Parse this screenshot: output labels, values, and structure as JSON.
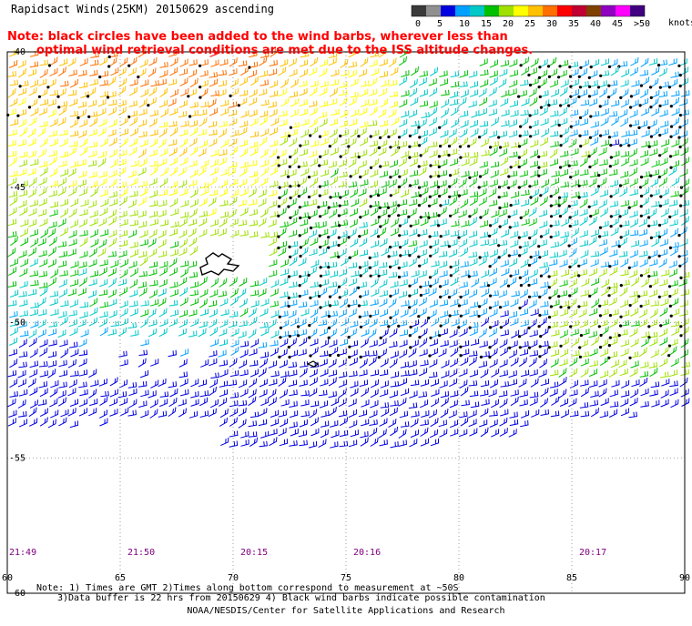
{
  "title": "Rapidsact Winds(25KM) 20150629 ascending",
  "note_line1": "Note: black circles have been added to the wind barbs, wherever less than",
  "note_line2": "optimal wind retrieval conditions are met due to the ISS altitude changes.",
  "colorbar": {
    "colors": [
      "#3a3a3a",
      "#909090",
      "#0000e0",
      "#00a0ff",
      "#00c8c8",
      "#00c000",
      "#9fe000",
      "#ffff00",
      "#ffc000",
      "#ff7000",
      "#ff0000",
      "#c00030",
      "#804000",
      "#9000c0",
      "#ff00ff",
      "#400080"
    ],
    "labels": [
      "0",
      "5",
      "10",
      "15",
      "20",
      "25",
      "30",
      "35",
      "40",
      "45",
      ">50"
    ],
    "unit": "knots"
  },
  "map": {
    "lat_labels": [
      "-40",
      "-45",
      "-50",
      "-55",
      "-60"
    ],
    "lon_labels": [
      "60",
      "65",
      "70",
      "75",
      "80",
      "85",
      "90"
    ],
    "time_labels": [
      {
        "text": "21:49",
        "lon": 60
      },
      {
        "text": "21:50",
        "lon": 65
      },
      {
        "text": "20:15",
        "lon": 70
      },
      {
        "text": "20:16",
        "lon": 75
      },
      {
        "text": "20:17",
        "lon": 85
      }
    ]
  },
  "footer_line1": "Note: 1) Times are GMT 2)Times along bottom correspond to measurement at ~50S",
  "footer_line2": "3)Data buffer is 22 hrs from 20150629 4) Black wind barbs indicate possible contamination",
  "credit": "NOAA/NESDIS/Center for Satellite Applications and Research"
}
